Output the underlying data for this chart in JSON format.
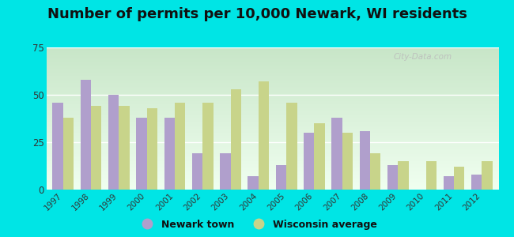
{
  "title": "Number of permits per 10,000 Newark, WI residents",
  "years": [
    1997,
    1998,
    1999,
    2000,
    2001,
    2002,
    2003,
    2004,
    2005,
    2006,
    2007,
    2008,
    2009,
    2010,
    2011,
    2012
  ],
  "newark": [
    46,
    58,
    50,
    38,
    38,
    19,
    19,
    7,
    13,
    30,
    38,
    31,
    13,
    0,
    7,
    8
  ],
  "wisconsin": [
    38,
    44,
    44,
    43,
    46,
    46,
    53,
    57,
    46,
    35,
    30,
    19,
    15,
    15,
    12,
    15
  ],
  "newark_color": "#b09fcc",
  "wisconsin_color": "#c8d48a",
  "ylim": [
    0,
    75
  ],
  "yticks": [
    0,
    25,
    50,
    75
  ],
  "bar_width": 0.38,
  "legend_newark": "Newark town",
  "legend_wisconsin": "Wisconsin average",
  "figure_bg": "#00e5e5",
  "plot_bg_top": "#e8f5e8",
  "plot_bg_bottom": "#f8fff8",
  "watermark": "City-Data.com",
  "title_fontsize": 13
}
